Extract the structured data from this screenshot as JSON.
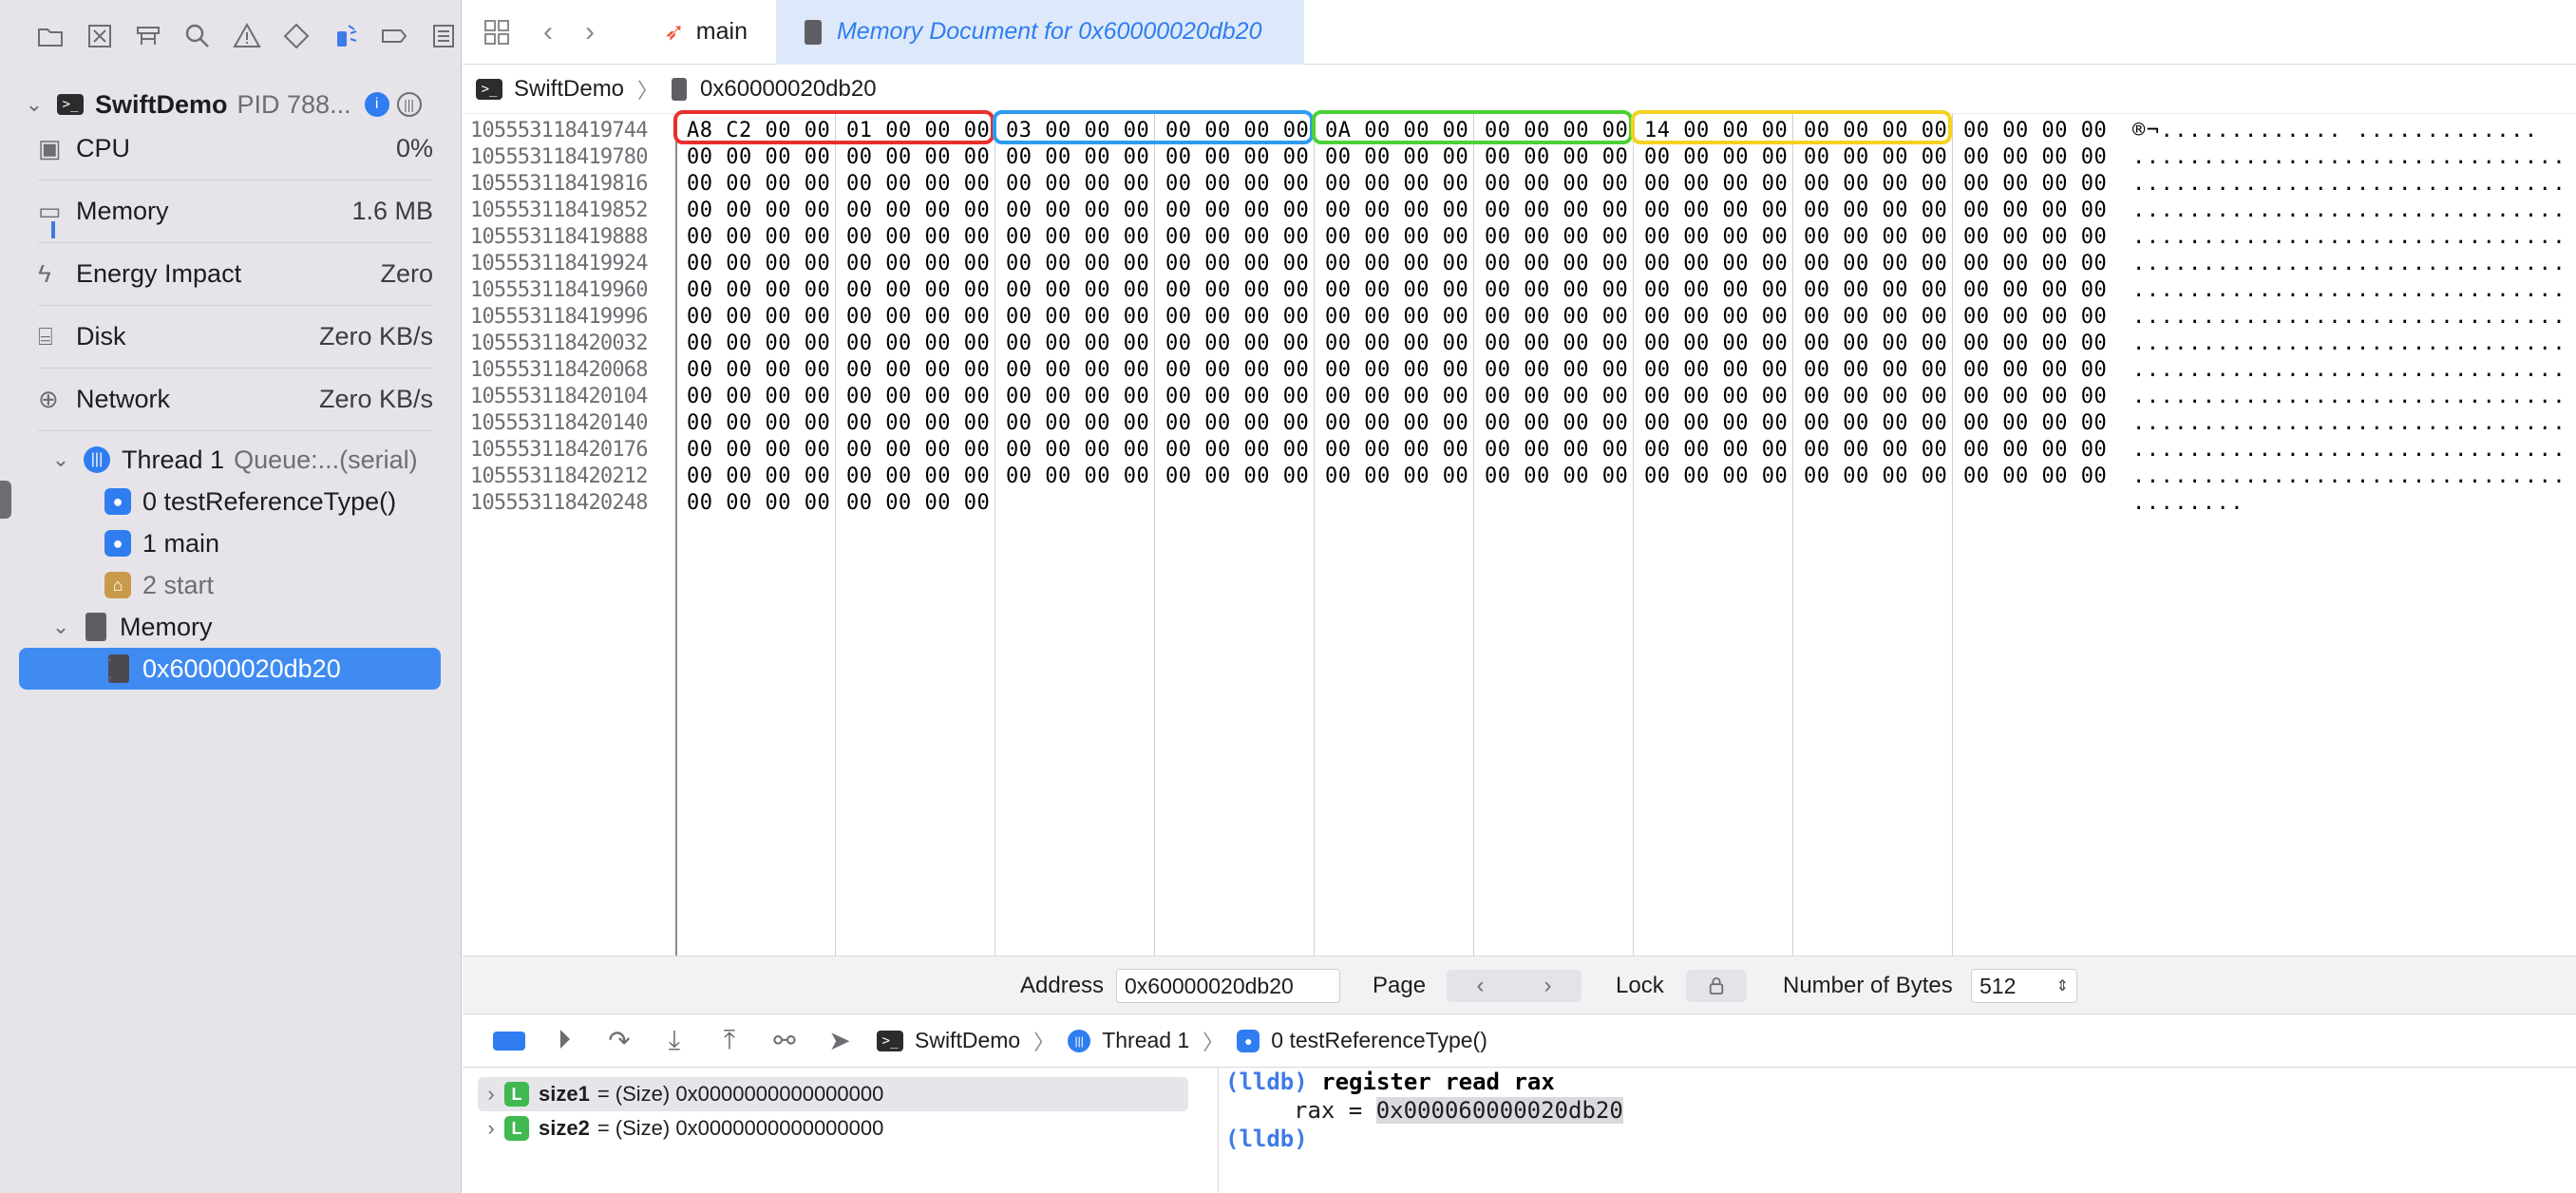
{
  "navigator": {
    "process": {
      "name": "SwiftDemo",
      "pid": "PID 788..."
    },
    "gauges": [
      {
        "label": "CPU",
        "value": "0%"
      },
      {
        "label": "Memory",
        "value": "1.6 MB"
      },
      {
        "label": "Energy Impact",
        "value": "Zero"
      },
      {
        "label": "Disk",
        "value": "Zero KB/s"
      },
      {
        "label": "Network",
        "value": "Zero KB/s"
      }
    ],
    "thread": {
      "name": "Thread 1",
      "queue": "Queue:...(serial)"
    },
    "frames": [
      "0 testReferenceType()",
      "1 main",
      "2 start"
    ],
    "memory_group": "Memory",
    "memory_item": "0x60000020db20"
  },
  "tabs": {
    "main": "main",
    "memory": "Memory Document for 0x60000020db20"
  },
  "jumpbar": {
    "project": "SwiftDemo",
    "item": "0x60000020db20"
  },
  "memory": {
    "addresses": [
      "105553118419744",
      "105553118419780",
      "105553118419816",
      "105553118419852",
      "105553118419888",
      "105553118419924",
      "105553118419960",
      "105553118419996",
      "105553118420032",
      "105553118420068",
      "105553118420104",
      "105553118420140",
      "105553118420176",
      "105553118420212",
      "105553118420248"
    ],
    "first_row_groups": [
      "A8 C2 00 00",
      "01 00 00 00",
      "03 00 00 00",
      "00 00 00 00",
      "0A 00 00 00",
      "00 00 00 00",
      "14 00 00 00",
      "00 00 00 00",
      "00 00 00 00"
    ],
    "zero_group": "00 00 00 00",
    "ascii_first": "®¬............. .............",
    "ascii_full": "...................................",
    "ascii_last": "........",
    "highlight_colors": [
      "#e8302b",
      "#2d9cf0",
      "#4cd137",
      "#f4d21f"
    ]
  },
  "address_bar": {
    "address_label": "Address",
    "address_value": "0x60000020db20",
    "page_label": "Page",
    "lock_label": "Lock",
    "bytes_label": "Number of Bytes",
    "bytes_value": "512"
  },
  "debugbar": {
    "project": "SwiftDemo",
    "thread": "Thread 1",
    "frame": "0 testReferenceType()"
  },
  "variables": [
    {
      "name": "size1",
      "detail": "= (Size) 0x0000000000000000"
    },
    {
      "name": "size2",
      "detail": "= (Size) 0x0000000000000000"
    }
  ],
  "console": {
    "prompt": "(lldb)",
    "command": "register read rax",
    "result_label": "rax = ",
    "result_value": "0x000060000020db20"
  }
}
